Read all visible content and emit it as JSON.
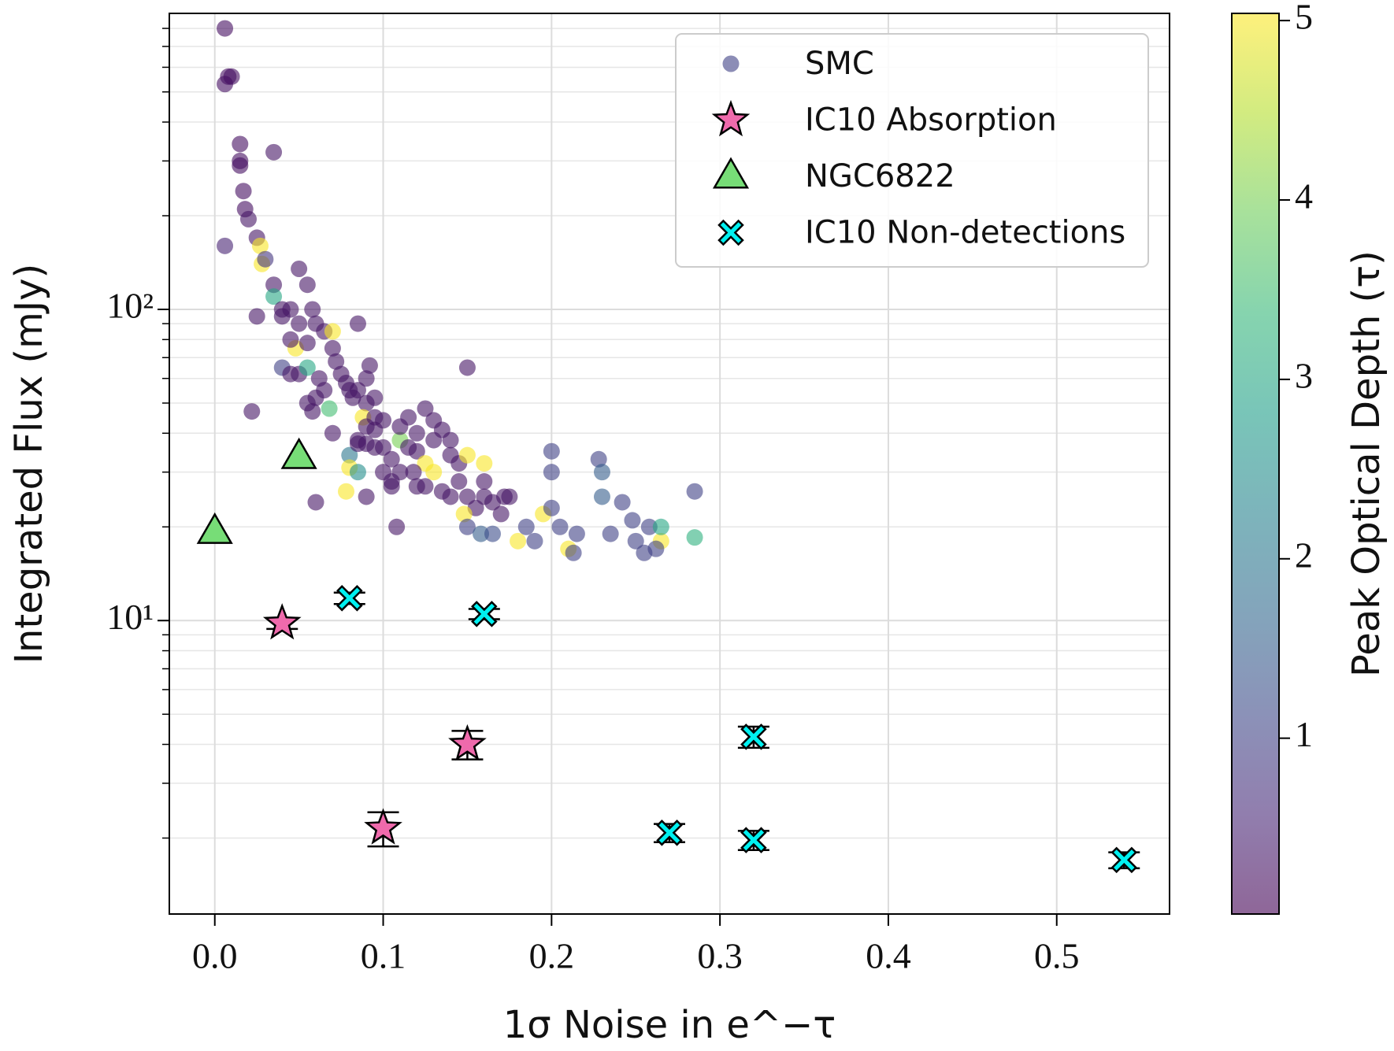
{
  "chart_data": {
    "type": "scatter",
    "xlabel": "1σ Noise in e^−τ",
    "ylabel": "Integrated Flux (mJy)",
    "colorbar_label": "Peak Optical Depth (τ)",
    "xlim": [
      -0.027,
      0.567
    ],
    "ylim": [
      1.14,
      894
    ],
    "ylog": true,
    "grid": true,
    "legend": "upper right",
    "colormap": "viridis",
    "clim": [
      0.02,
      5.04
    ],
    "cticks": [
      1,
      2,
      3,
      4,
      5
    ],
    "xticks": [
      {
        "value": 0,
        "label": "0.0"
      },
      0.1,
      0.2,
      0.3,
      0.4,
      0.5
    ],
    "yticks": [
      {
        "value": 10,
        "label": "10¹"
      },
      {
        "value": 100,
        "label": "10²"
      }
    ],
    "yminorticks": [
      2,
      3,
      4,
      5,
      6,
      7,
      8,
      9,
      20,
      30,
      40,
      50,
      60,
      70,
      80,
      90,
      200,
      300,
      400,
      500,
      600,
      700,
      800
    ],
    "series": [
      {
        "name": "SMC",
        "marker": "circle",
        "alpha": 0.6,
        "x": [
          0.006,
          0.006,
          0.008,
          0.01,
          0.015,
          0.015,
          0.015,
          0.017,
          0.018,
          0.02,
          0.035,
          0.006,
          0.025,
          0.027,
          0.028,
          0.03,
          0.025,
          0.035,
          0.035,
          0.04,
          0.04,
          0.045,
          0.05,
          0.055,
          0.05,
          0.048,
          0.045,
          0.04,
          0.045,
          0.05,
          0.055,
          0.058,
          0.06,
          0.055,
          0.055,
          0.06,
          0.058,
          0.062,
          0.065,
          0.065,
          0.07,
          0.07,
          0.072,
          0.068,
          0.07,
          0.075,
          0.078,
          0.08,
          0.082,
          0.085,
          0.085,
          0.09,
          0.09,
          0.092,
          0.095,
          0.088,
          0.09,
          0.095,
          0.1,
          0.085,
          0.09,
          0.095,
          0.1,
          0.08,
          0.08,
          0.085,
          0.078,
          0.09,
          0.1,
          0.105,
          0.105,
          0.108,
          0.11,
          0.11,
          0.115,
          0.12,
          0.12,
          0.125,
          0.125,
          0.13,
          0.13,
          0.135,
          0.14,
          0.14,
          0.145,
          0.15,
          0.15,
          0.118,
          0.12,
          0.125,
          0.13,
          0.135,
          0.14,
          0.145,
          0.15,
          0.155,
          0.148,
          0.15,
          0.16,
          0.16,
          0.16,
          0.165,
          0.17,
          0.172,
          0.175,
          0.158,
          0.165,
          0.18,
          0.185,
          0.19,
          0.195,
          0.2,
          0.2,
          0.2,
          0.205,
          0.21,
          0.213,
          0.215,
          0.228,
          0.23,
          0.23,
          0.235,
          0.242,
          0.248,
          0.25,
          0.255,
          0.258,
          0.265,
          0.265,
          0.262,
          0.285,
          0.285,
          0.022,
          0.06,
          0.085,
          0.095,
          0.105,
          0.11,
          0.115
        ],
        "values": [
          800,
          530,
          560,
          560,
          340,
          300,
          290,
          240,
          210,
          195,
          320,
          160,
          170,
          160,
          140,
          145,
          95,
          120,
          110,
          100,
          95,
          100,
          135,
          120,
          90,
          75,
          80,
          65,
          62,
          62,
          78,
          100,
          90,
          65,
          50,
          52,
          47,
          60,
          55,
          85,
          85,
          75,
          68,
          48,
          40,
          62,
          58,
          55,
          52,
          90,
          55,
          50,
          60,
          66,
          52,
          45,
          42,
          45,
          44,
          38,
          37,
          36,
          36,
          34,
          31,
          30,
          26,
          25,
          30,
          28,
          27,
          20,
          38,
          42,
          45,
          40,
          35,
          48,
          32,
          44,
          38,
          41,
          38,
          34,
          32,
          65,
          34,
          30,
          27,
          27,
          30,
          26,
          25,
          28,
          25,
          23,
          22,
          20,
          32,
          28,
          25,
          24,
          22,
          25,
          25,
          19,
          19,
          18,
          20,
          18,
          22,
          35,
          30,
          23,
          20,
          17,
          16.5,
          19,
          33,
          30,
          25,
          19,
          24,
          21,
          18,
          16.5,
          20,
          18,
          20,
          17,
          26,
          18.5,
          47,
          24,
          37,
          41,
          33,
          30,
          36
        ],
        "c": [
          0.2,
          0.2,
          0.2,
          0.2,
          0.2,
          0.2,
          0.2,
          0.2,
          0.2,
          0.3,
          0.3,
          0.5,
          0.3,
          5,
          5,
          0.8,
          0.3,
          0.3,
          3,
          0.3,
          0.3,
          0.3,
          0.3,
          0.3,
          0.3,
          5,
          0.3,
          1,
          0.3,
          0.3,
          0.3,
          0.3,
          0.3,
          3,
          0.3,
          0.3,
          0.3,
          0.3,
          0.3,
          0.3,
          5,
          0.3,
          0.3,
          3.5,
          0.3,
          0.3,
          0.3,
          0.3,
          0.3,
          0.3,
          0.3,
          0.3,
          0.3,
          0.3,
          0.3,
          5,
          0.3,
          0.3,
          0.3,
          0.3,
          0.3,
          0.3,
          0.3,
          2,
          5,
          2.5,
          5,
          0.3,
          0.3,
          0.3,
          0.3,
          0.3,
          4,
          0.3,
          0.3,
          0.3,
          0.3,
          0.3,
          5,
          0.3,
          0.3,
          0.3,
          0.3,
          0.3,
          0.3,
          0.3,
          5,
          0.3,
          0.3,
          0.3,
          5,
          0.3,
          0.3,
          0.3,
          0.3,
          0.3,
          5,
          1,
          5,
          0.3,
          0.3,
          0.3,
          0.3,
          0.3,
          0.3,
          1.5,
          1.2,
          5,
          1,
          1,
          5,
          1,
          1,
          1,
          1,
          5,
          1,
          1,
          1,
          1.5,
          1.5,
          1,
          1,
          1,
          1,
          1,
          1,
          5,
          3,
          1,
          1,
          3.2,
          0.3,
          0.3,
          0.3,
          0.3,
          0.3,
          0.3,
          0.3
        ]
      },
      {
        "name": "IC10 Absorption",
        "marker": "star",
        "color": "#ef6aac",
        "x": [
          0.04,
          0.15,
          0.1
        ],
        "values": [
          9.8,
          4.0,
          2.15
        ],
        "errors": [
          0.4,
          0.42,
          0.27
        ]
      },
      {
        "name": "NGC6822",
        "marker": "triangle",
        "color": "#77dd77",
        "x": [
          0.0,
          0.05
        ],
        "values": [
          19.3,
          33.6
        ]
      },
      {
        "name": "IC10 Non-detections",
        "marker": "x",
        "color": "#00f0f0",
        "x": [
          0.08,
          0.16,
          0.32,
          0.27,
          0.32,
          0.54
        ],
        "values": [
          11.8,
          10.5,
          4.23,
          2.08,
          1.97,
          1.7
        ],
        "errors": [
          0.5,
          0.4,
          0.33,
          0.14,
          0.14,
          0.1
        ]
      }
    ]
  }
}
